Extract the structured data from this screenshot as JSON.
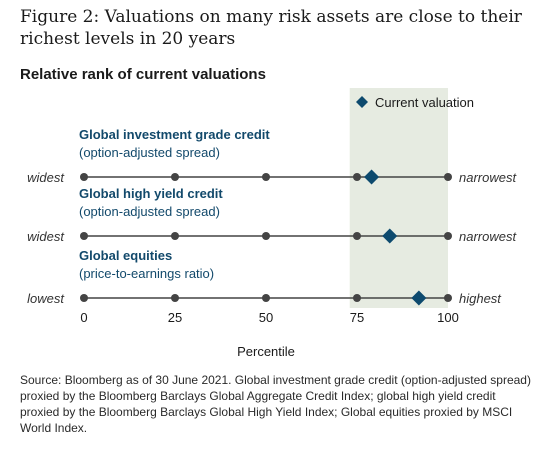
{
  "figure_title": "Figure 2: Valuations on many risk assets are close to their richest levels in 20 years",
  "chart_title": "Relative rank of current valuations",
  "source_note": "Source: Bloomberg as of 30 June 2021. Global investment grade credit (option-adjusted spread) proxied by the Bloomberg Barclays Global Aggregate Credit Index; global high yield credit proxied by the Bloomberg Barclays Global High Yield Index; Global equities proxied by MSCI World Index.",
  "colors": {
    "marker": "#0d4a6e",
    "line": "#444444",
    "shade": "#e6ebe1",
    "label": "#12496b"
  },
  "chart_data": {
    "type": "scatter",
    "title": "Relative rank of current valuations",
    "xlabel": "Percentile",
    "xlim": [
      0,
      100
    ],
    "x_ticks": [
      0,
      25,
      50,
      75,
      100
    ],
    "shaded_range": [
      73,
      100
    ],
    "legend": {
      "label": "Current valuation",
      "placement": "top-right",
      "marker": "diamond"
    },
    "series": [
      {
        "name": "Global investment grade credit",
        "sublabel": "(option-adjusted spread)",
        "left_label": "widest",
        "right_label": "narrowest",
        "value": 79
      },
      {
        "name": "Global high yield credit",
        "sublabel": "(option-adjusted spread)",
        "left_label": "widest",
        "right_label": "narrowest",
        "value": 84
      },
      {
        "name": "Global equities",
        "sublabel": "(price-to-earnings ratio)",
        "left_label": "lowest",
        "right_label": "highest",
        "value": 92
      }
    ]
  }
}
